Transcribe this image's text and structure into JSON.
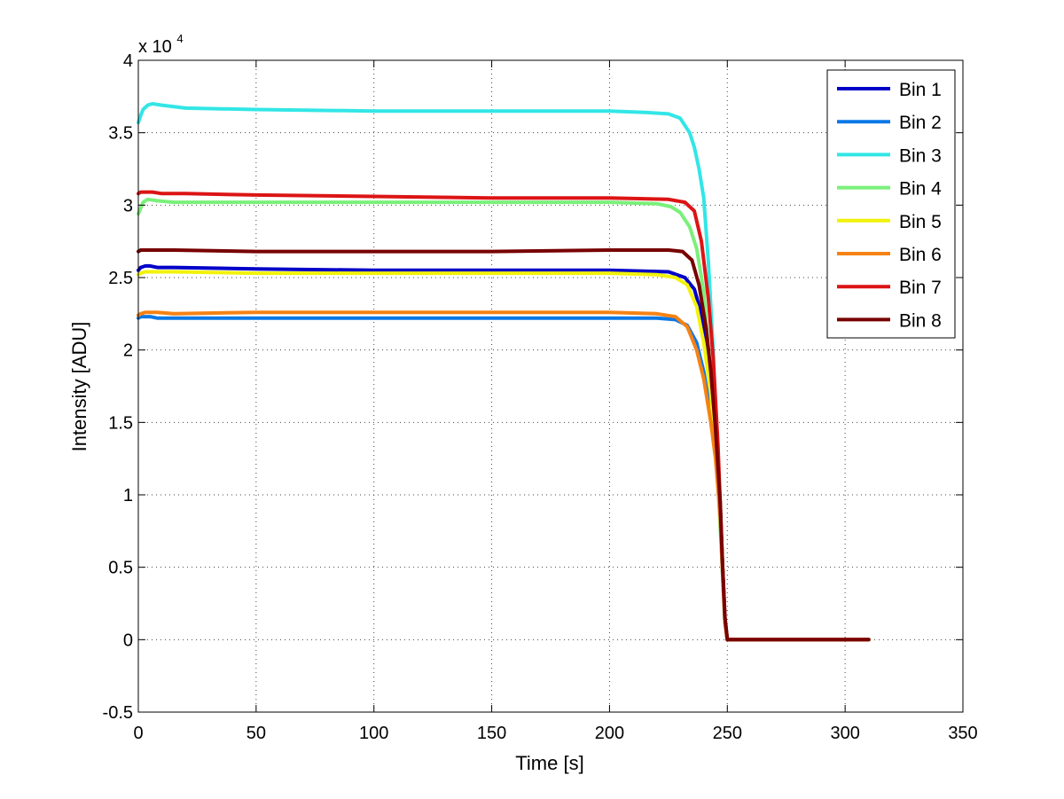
{
  "chart_data": {
    "type": "line",
    "title": "",
    "xlabel": "Time [s]",
    "ylabel": "Intensity [ADU]",
    "xlim": [
      0,
      350
    ],
    "ylim": [
      -0.5,
      4
    ],
    "y_scale_label": "x 10",
    "y_scale_exponent": "4",
    "grid": true,
    "legend_position": "top-right",
    "x_ticks": [
      0,
      50,
      100,
      150,
      200,
      250,
      300,
      350
    ],
    "x_tick_labels": [
      "0",
      "50",
      "100",
      "150",
      "200",
      "250",
      "300",
      "350"
    ],
    "y_ticks": [
      -0.5,
      0,
      0.5,
      1,
      1.5,
      2,
      2.5,
      3,
      3.5,
      4
    ],
    "y_tick_labels": [
      "-0.5",
      "0",
      "0.5",
      "1",
      "1.5",
      "2",
      "2.5",
      "3",
      "3.5",
      "4"
    ],
    "series": [
      {
        "name": "Bin 1",
        "color": "#0000c8",
        "x": [
          0,
          1,
          3,
          5,
          8,
          15,
          50,
          100,
          150,
          200,
          225,
          232,
          236,
          239,
          242,
          244,
          246,
          248,
          249,
          250,
          260,
          280,
          310
        ],
        "y": [
          2.55,
          2.57,
          2.58,
          2.58,
          2.57,
          2.57,
          2.56,
          2.55,
          2.55,
          2.55,
          2.54,
          2.5,
          2.42,
          2.25,
          1.9,
          1.6,
          1.2,
          0.5,
          0.15,
          0,
          0,
          0,
          0
        ]
      },
      {
        "name": "Bin 2",
        "color": "#0a78e6",
        "x": [
          0,
          1,
          3,
          5,
          8,
          15,
          50,
          100,
          150,
          200,
          220,
          228,
          233,
          237,
          240,
          243,
          245,
          247,
          248,
          249,
          250,
          260,
          280,
          310
        ],
        "y": [
          2.22,
          2.23,
          2.23,
          2.23,
          2.22,
          2.22,
          2.22,
          2.22,
          2.22,
          2.22,
          2.22,
          2.21,
          2.17,
          2.05,
          1.85,
          1.55,
          1.3,
          0.9,
          0.5,
          0.15,
          0,
          0,
          0,
          0
        ]
      },
      {
        "name": "Bin 3",
        "color": "#32e6e6",
        "x": [
          0,
          1,
          2,
          4,
          6,
          10,
          20,
          50,
          100,
          150,
          200,
          215,
          225,
          230,
          234,
          236,
          238,
          240,
          242,
          244,
          246,
          248,
          249,
          250,
          260,
          280,
          310
        ],
        "y": [
          3.57,
          3.62,
          3.66,
          3.69,
          3.7,
          3.69,
          3.67,
          3.66,
          3.65,
          3.65,
          3.65,
          3.64,
          3.63,
          3.6,
          3.5,
          3.4,
          3.25,
          3.05,
          2.6,
          2.0,
          1.2,
          0.45,
          0.15,
          0,
          0,
          0,
          0
        ]
      },
      {
        "name": "Bin 4",
        "color": "#7af07a",
        "x": [
          0,
          1,
          2,
          4,
          8,
          15,
          50,
          100,
          150,
          200,
          220,
          226,
          230,
          234,
          237,
          240,
          242,
          244,
          246,
          248,
          249,
          250,
          260,
          280,
          310
        ],
        "y": [
          2.94,
          2.98,
          3.02,
          3.04,
          3.03,
          3.02,
          3.02,
          3.02,
          3.02,
          3.02,
          3.01,
          2.99,
          2.95,
          2.85,
          2.7,
          2.4,
          2.0,
          1.6,
          1.1,
          0.45,
          0.12,
          0,
          0,
          0,
          0
        ]
      },
      {
        "name": "Bin 5",
        "color": "#f2f20a",
        "x": [
          0,
          1,
          3,
          8,
          15,
          50,
          100,
          150,
          200,
          220,
          228,
          233,
          237,
          240,
          243,
          245,
          247,
          248,
          249,
          250,
          260,
          280,
          310
        ],
        "y": [
          2.52,
          2.53,
          2.54,
          2.54,
          2.54,
          2.53,
          2.53,
          2.53,
          2.53,
          2.52,
          2.5,
          2.45,
          2.3,
          2.05,
          1.7,
          1.3,
          0.9,
          0.5,
          0.15,
          0,
          0,
          0,
          0
        ]
      },
      {
        "name": "Bin 6",
        "color": "#f58214",
        "x": [
          0,
          1,
          3,
          8,
          15,
          50,
          100,
          150,
          200,
          220,
          228,
          233,
          237,
          240,
          243,
          245,
          247,
          248,
          249,
          250,
          260,
          280,
          310
        ],
        "y": [
          2.24,
          2.25,
          2.26,
          2.26,
          2.25,
          2.26,
          2.26,
          2.26,
          2.26,
          2.25,
          2.23,
          2.16,
          2.0,
          1.8,
          1.5,
          1.25,
          0.85,
          0.45,
          0.12,
          0,
          0,
          0,
          0
        ]
      },
      {
        "name": "Bin 7",
        "color": "#dc1414",
        "x": [
          0,
          1,
          3,
          6,
          10,
          20,
          50,
          100,
          150,
          200,
          225,
          232,
          236,
          239,
          242,
          244,
          246,
          248,
          249,
          250,
          260,
          280,
          310
        ],
        "y": [
          3.08,
          3.09,
          3.09,
          3.09,
          3.08,
          3.08,
          3.07,
          3.06,
          3.05,
          3.05,
          3.04,
          3.02,
          2.96,
          2.75,
          2.35,
          1.95,
          1.35,
          0.5,
          0.15,
          0,
          0,
          0,
          0
        ]
      },
      {
        "name": "Bin 8",
        "color": "#780000",
        "x": [
          0,
          1,
          3,
          8,
          15,
          50,
          100,
          150,
          200,
          225,
          231,
          235,
          238,
          241,
          243,
          245,
          247,
          248,
          249,
          250,
          260,
          280,
          310
        ],
        "y": [
          2.68,
          2.69,
          2.69,
          2.69,
          2.69,
          2.68,
          2.68,
          2.68,
          2.69,
          2.69,
          2.68,
          2.62,
          2.45,
          2.15,
          1.85,
          1.45,
          0.95,
          0.5,
          0.15,
          0,
          0,
          0,
          0
        ]
      }
    ]
  }
}
